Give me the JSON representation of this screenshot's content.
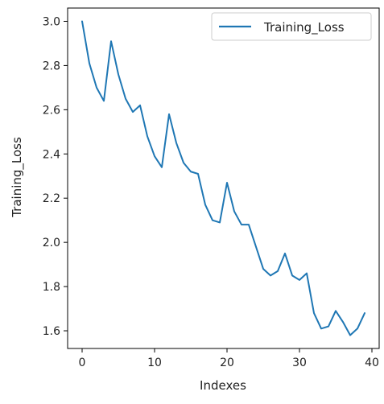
{
  "chart_data": {
    "type": "line",
    "title": "",
    "xlabel": "Indexes",
    "ylabel": "Training_Loss",
    "xlim": [
      -2,
      41
    ],
    "ylim": [
      1.52,
      3.06
    ],
    "x_ticks": [
      0,
      10,
      20,
      30,
      40
    ],
    "y_ticks": [
      1.6,
      1.8,
      2.0,
      2.2,
      2.4,
      2.6,
      2.8,
      3.0
    ],
    "x_tick_labels": [
      "0",
      "10",
      "20",
      "30",
      "40"
    ],
    "y_tick_labels": [
      "1.6",
      "1.8",
      "2.0",
      "2.2",
      "2.4",
      "2.6",
      "2.8",
      "3.0"
    ],
    "grid": false,
    "legend": {
      "position": "top-right",
      "entries": [
        "Training_Loss"
      ]
    },
    "series": [
      {
        "name": "Training_Loss",
        "color": "#1f77b4",
        "x": [
          0,
          1,
          2,
          3,
          4,
          5,
          6,
          7,
          8,
          9,
          10,
          11,
          12,
          13,
          14,
          15,
          16,
          17,
          18,
          19,
          20,
          21,
          22,
          23,
          24,
          25,
          26,
          27,
          28,
          29,
          30,
          31,
          32,
          33,
          34,
          35,
          36,
          37,
          38,
          39
        ],
        "values": [
          3.0,
          2.81,
          2.7,
          2.64,
          2.91,
          2.76,
          2.65,
          2.59,
          2.62,
          2.48,
          2.39,
          2.34,
          2.58,
          2.45,
          2.36,
          2.32,
          2.31,
          2.17,
          2.1,
          2.09,
          2.27,
          2.14,
          2.08,
          2.08,
          1.98,
          1.88,
          1.85,
          1.87,
          1.95,
          1.85,
          1.83,
          1.86,
          1.68,
          1.61,
          1.62,
          1.69,
          1.64,
          1.58,
          1.61,
          1.68
        ]
      }
    ]
  }
}
